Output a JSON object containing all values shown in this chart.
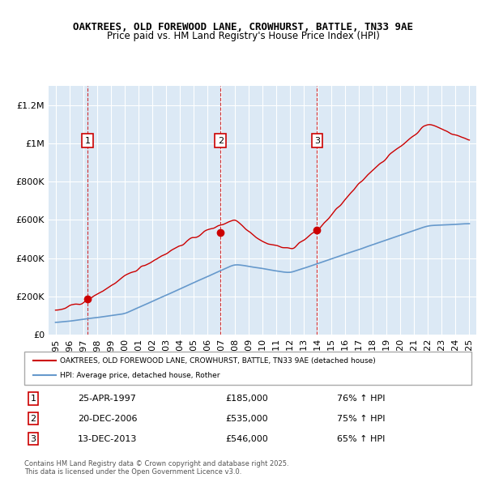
{
  "title": "OAKTREES, OLD FOREWOOD LANE, CROWHURST, BATTLE, TN33 9AE",
  "subtitle": "Price paid vs. HM Land Registry's House Price Index (HPI)",
  "ylim": [
    0,
    1300000
  ],
  "yticks": [
    0,
    200000,
    400000,
    600000,
    800000,
    1000000,
    1200000
  ],
  "ytick_labels": [
    "£0",
    "£200K",
    "£400K",
    "£600K",
    "£800K",
    "£1M",
    "£1.2M"
  ],
  "background_color": "#dce9f5",
  "plot_bg_color": "#dce9f5",
  "grid_color": "#ffffff",
  "sale_dates_year": [
    1997.32,
    2006.97,
    2013.96
  ],
  "sale_prices": [
    185000,
    535000,
    546000
  ],
  "sale_labels": [
    "1",
    "2",
    "3"
  ],
  "legend_line1": "OAKTREES, OLD FOREWOOD LANE, CROWHURST, BATTLE, TN33 9AE (detached house)",
  "legend_line2": "HPI: Average price, detached house, Rother",
  "table_data": [
    [
      "1",
      "25-APR-1997",
      "£185,000",
      "76% ↑ HPI"
    ],
    [
      "2",
      "20-DEC-2006",
      "£535,000",
      "75% ↑ HPI"
    ],
    [
      "3",
      "13-DEC-2013",
      "£546,000",
      "65% ↑ HPI"
    ]
  ],
  "footnote": "Contains HM Land Registry data © Crown copyright and database right 2025.\nThis data is licensed under the Open Government Licence v3.0.",
  "red_color": "#cc0000",
  "blue_color": "#6699cc",
  "marker_color": "#cc0000"
}
